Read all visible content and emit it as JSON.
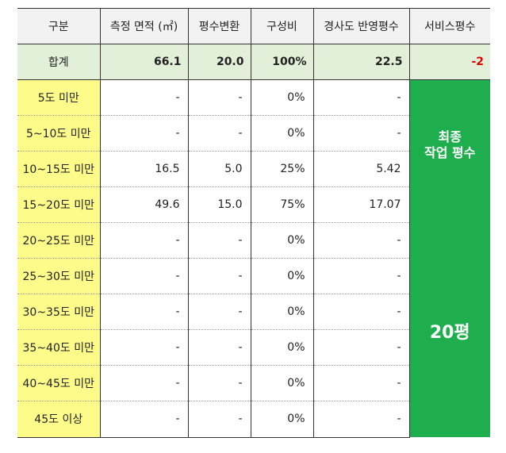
{
  "headers": [
    "구분",
    "측정 면적 (㎡)",
    "평수변환",
    "구성비",
    "경사도 반영평수",
    "서비스평수"
  ],
  "total": {
    "label": "합계",
    "area": "66.1",
    "pyeong": "20.0",
    "ratio": "100%",
    "slope_pyeong": "22.5",
    "service": "-2"
  },
  "rows": [
    {
      "label": "5도 미만",
      "area": "-",
      "pyeong": "-",
      "ratio": "0%",
      "slope_pyeong": "-"
    },
    {
      "label": "5~10도 미만",
      "area": "-",
      "pyeong": "-",
      "ratio": "0%",
      "slope_pyeong": "-"
    },
    {
      "label": "10~15도 미만",
      "area": "16.5",
      "pyeong": "5.0",
      "ratio": "25%",
      "slope_pyeong": "5.42"
    },
    {
      "label": "15~20도 미만",
      "area": "49.6",
      "pyeong": "15.0",
      "ratio": "75%",
      "slope_pyeong": "17.07"
    },
    {
      "label": "20~25도 미만",
      "area": "-",
      "pyeong": "-",
      "ratio": "0%",
      "slope_pyeong": "-"
    },
    {
      "label": "25~30도 미만",
      "area": "-",
      "pyeong": "-",
      "ratio": "0%",
      "slope_pyeong": "-"
    },
    {
      "label": "30~35도 미만",
      "area": "-",
      "pyeong": "-",
      "ratio": "0%",
      "slope_pyeong": "-"
    },
    {
      "label": "35~40도 미만",
      "area": "-",
      "pyeong": "-",
      "ratio": "0%",
      "slope_pyeong": "-"
    },
    {
      "label": "40~45도 미만",
      "area": "-",
      "pyeong": "-",
      "ratio": "0%",
      "slope_pyeong": "-"
    },
    {
      "label": "45도 이상",
      "area": "-",
      "pyeong": "-",
      "ratio": "0%",
      "slope_pyeong": "-"
    }
  ],
  "final": {
    "label_line1": "최종",
    "label_line2": "작업 평수",
    "value": "20평"
  },
  "colors": {
    "label_bg": "#fdfc8a",
    "total_bg": "#e2f0d9",
    "final_bg": "#1fae4d",
    "service_red": "#e00000"
  }
}
